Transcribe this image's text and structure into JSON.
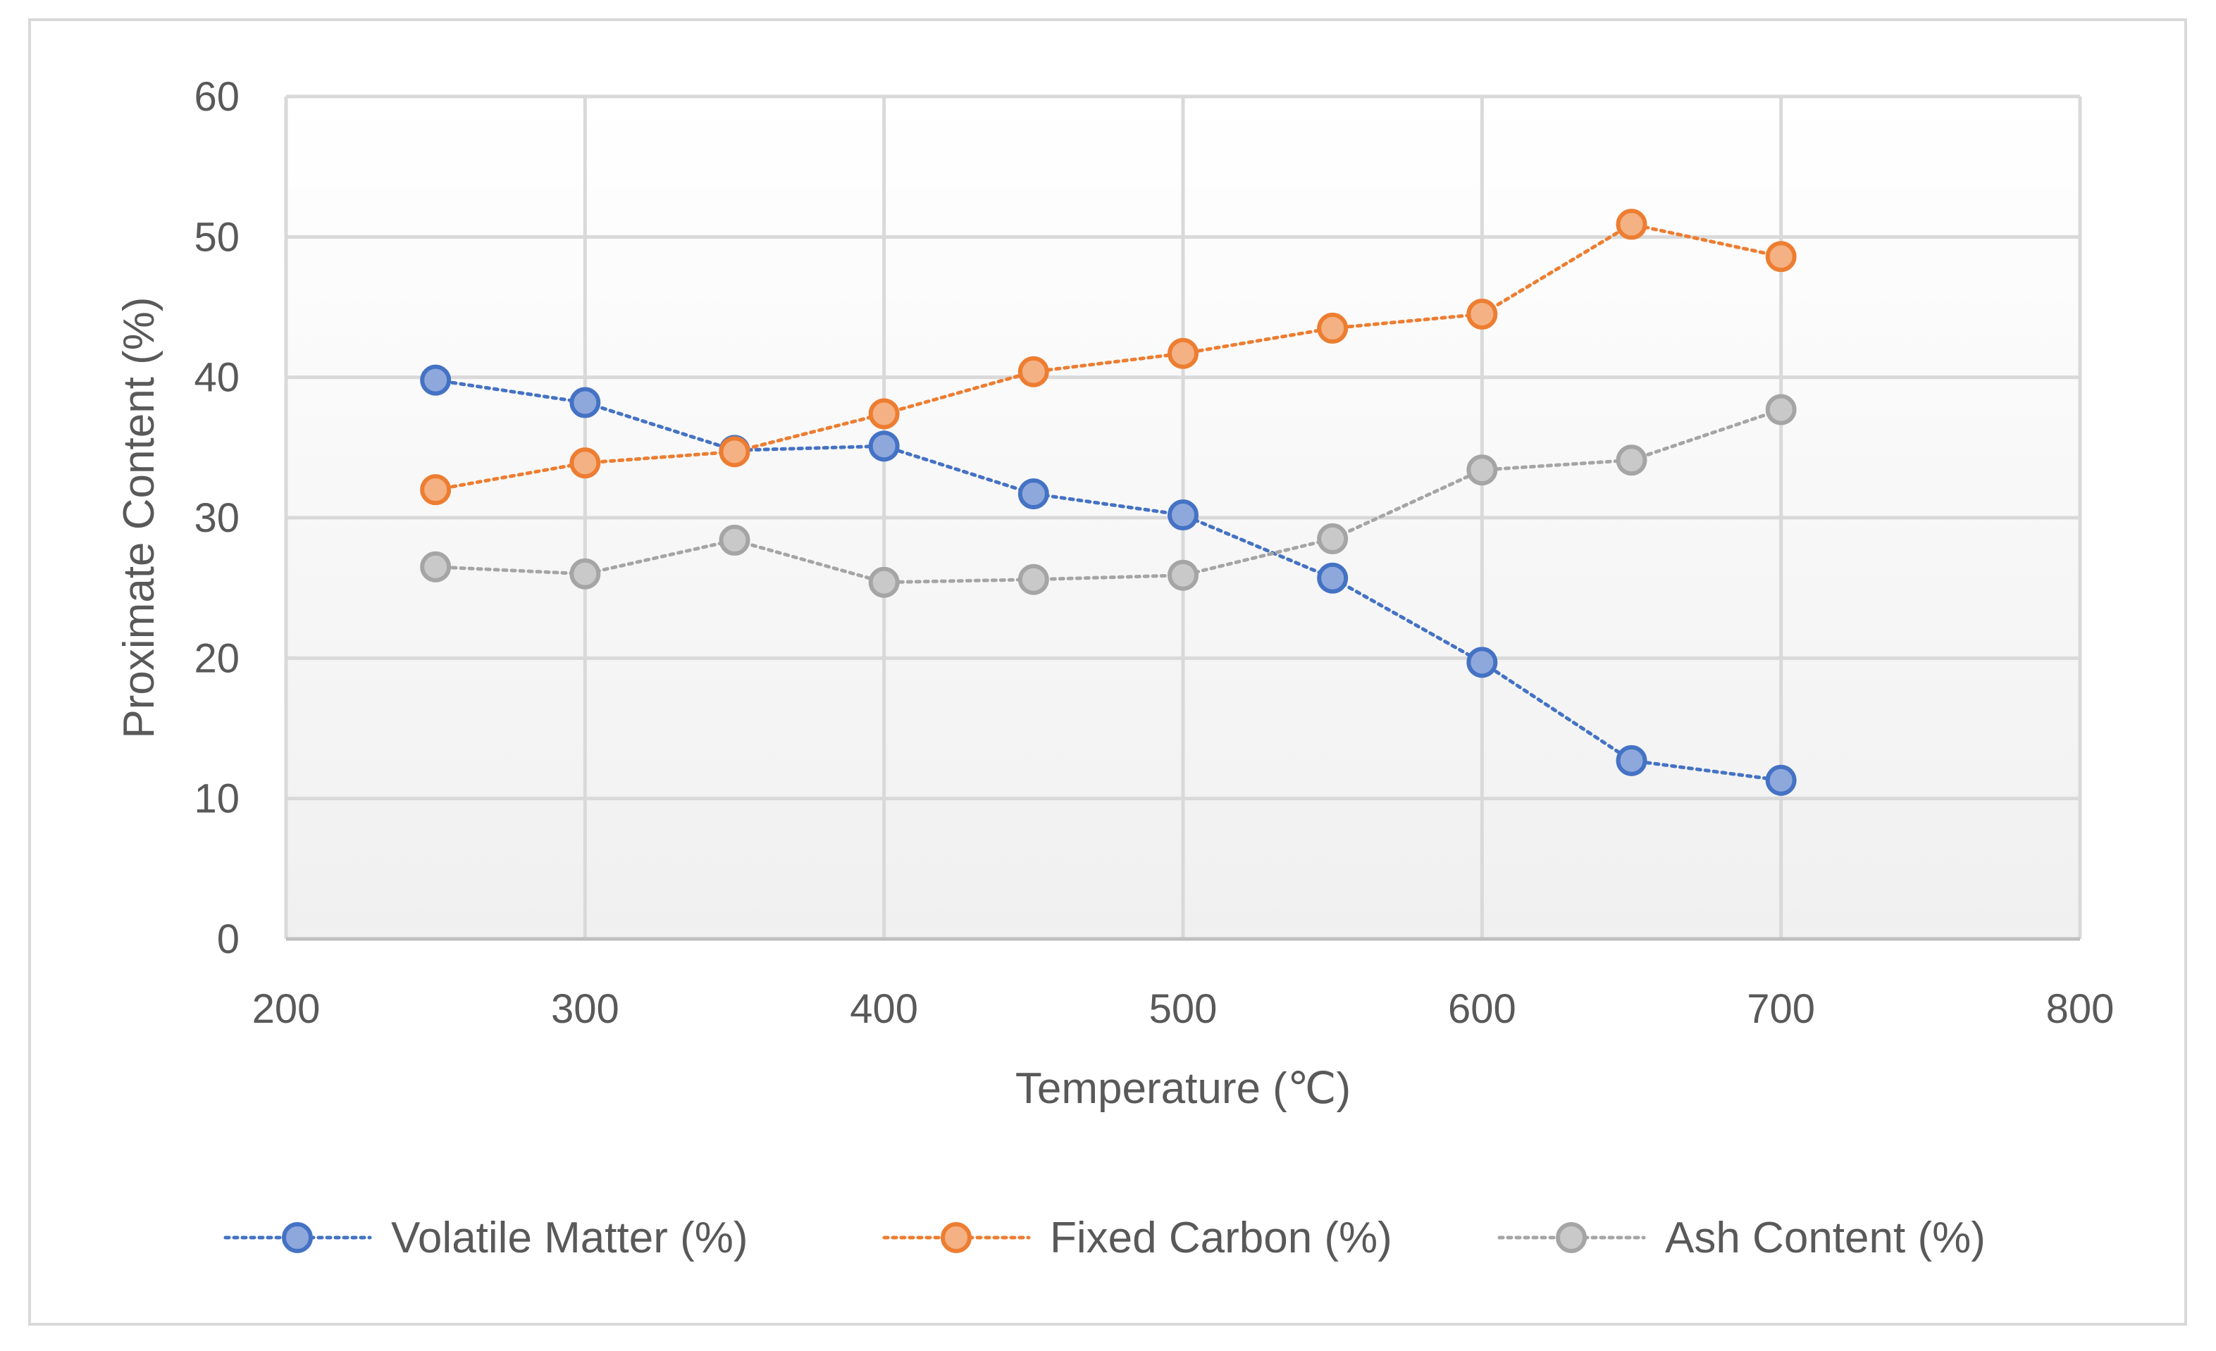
{
  "chart_data": {
    "type": "scatter",
    "title": "",
    "xlabel": "Temperature (℃)",
    "ylabel": "Proximate Content (%)",
    "xlim": [
      200,
      800
    ],
    "ylim": [
      0,
      60
    ],
    "xticks": [
      200,
      300,
      400,
      500,
      600,
      700,
      800
    ],
    "yticks": [
      0,
      10,
      20,
      30,
      40,
      50,
      60
    ],
    "grid": true,
    "legend_position": "bottom",
    "x": [
      250,
      300,
      350,
      400,
      450,
      500,
      550,
      600,
      650,
      700
    ],
    "series": [
      {
        "name": "Volatile Matter (%)",
        "values": [
          39.8,
          38.2,
          34.8,
          35.1,
          31.7,
          30.2,
          25.7,
          19.7,
          12.7,
          11.3
        ],
        "line_color": "#4472c4",
        "marker_fill": "#8fa8dc"
      },
      {
        "name": "Fixed Carbon (%)",
        "values": [
          32.0,
          33.9,
          34.7,
          37.4,
          40.4,
          41.7,
          43.5,
          44.5,
          50.9,
          48.6
        ],
        "line_color": "#ed7d31",
        "marker_fill": "#f4b183"
      },
      {
        "name": "Ash Content (%)",
        "values": [
          26.5,
          26.0,
          28.4,
          25.4,
          25.6,
          25.9,
          28.5,
          33.4,
          34.1,
          37.7
        ],
        "line_color": "#a5a5a5",
        "marker_fill": "#c9c9c9"
      }
    ]
  }
}
